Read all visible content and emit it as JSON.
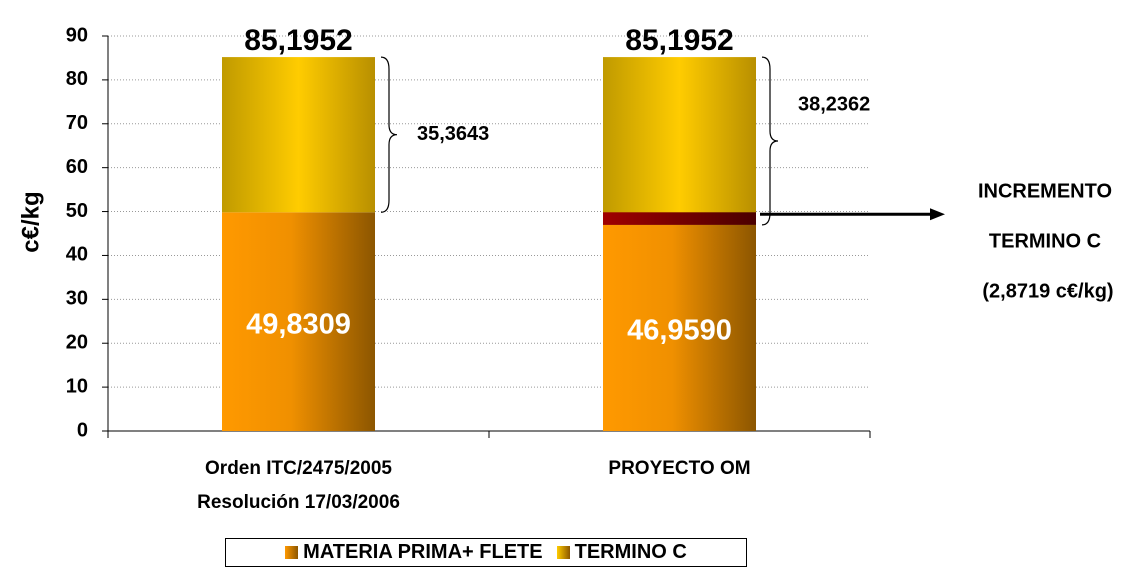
{
  "chart_data": {
    "type": "stacked_bar",
    "y_label": "c€/kg",
    "categories": [
      "Orden ITC/2475/2005\nResolución 17/03/2006",
      "PROYECTO OM"
    ],
    "series": [
      {
        "name": "MATERIA PRIMA+ FLETE",
        "color": "#ff9900",
        "values": [
          49.8309,
          46.959
        ],
        "value_labels": [
          "49,8309",
          "46,9590"
        ]
      },
      {
        "name": "TERMINO C",
        "color": "#ffcc00",
        "values": [
          35.3643,
          38.2362
        ],
        "value_labels": [
          "35,3643",
          "38,2362"
        ]
      }
    ],
    "totals": {
      "values": [
        85.1952,
        85.1952
      ],
      "value_labels": [
        "85,1952",
        "85,1952"
      ]
    },
    "annotation": {
      "lines": [
        "INCREMENTO",
        "TERMINO C"
      ],
      "value": 2.8719,
      "label": "(2,8719 c€/kg)",
      "color": "#7a0000"
    },
    "ylim": [
      0,
      90
    ],
    "yticks": [
      0,
      10,
      20,
      30,
      40,
      50,
      60,
      70,
      80,
      90
    ],
    "grid": true,
    "legend": "bottom"
  }
}
